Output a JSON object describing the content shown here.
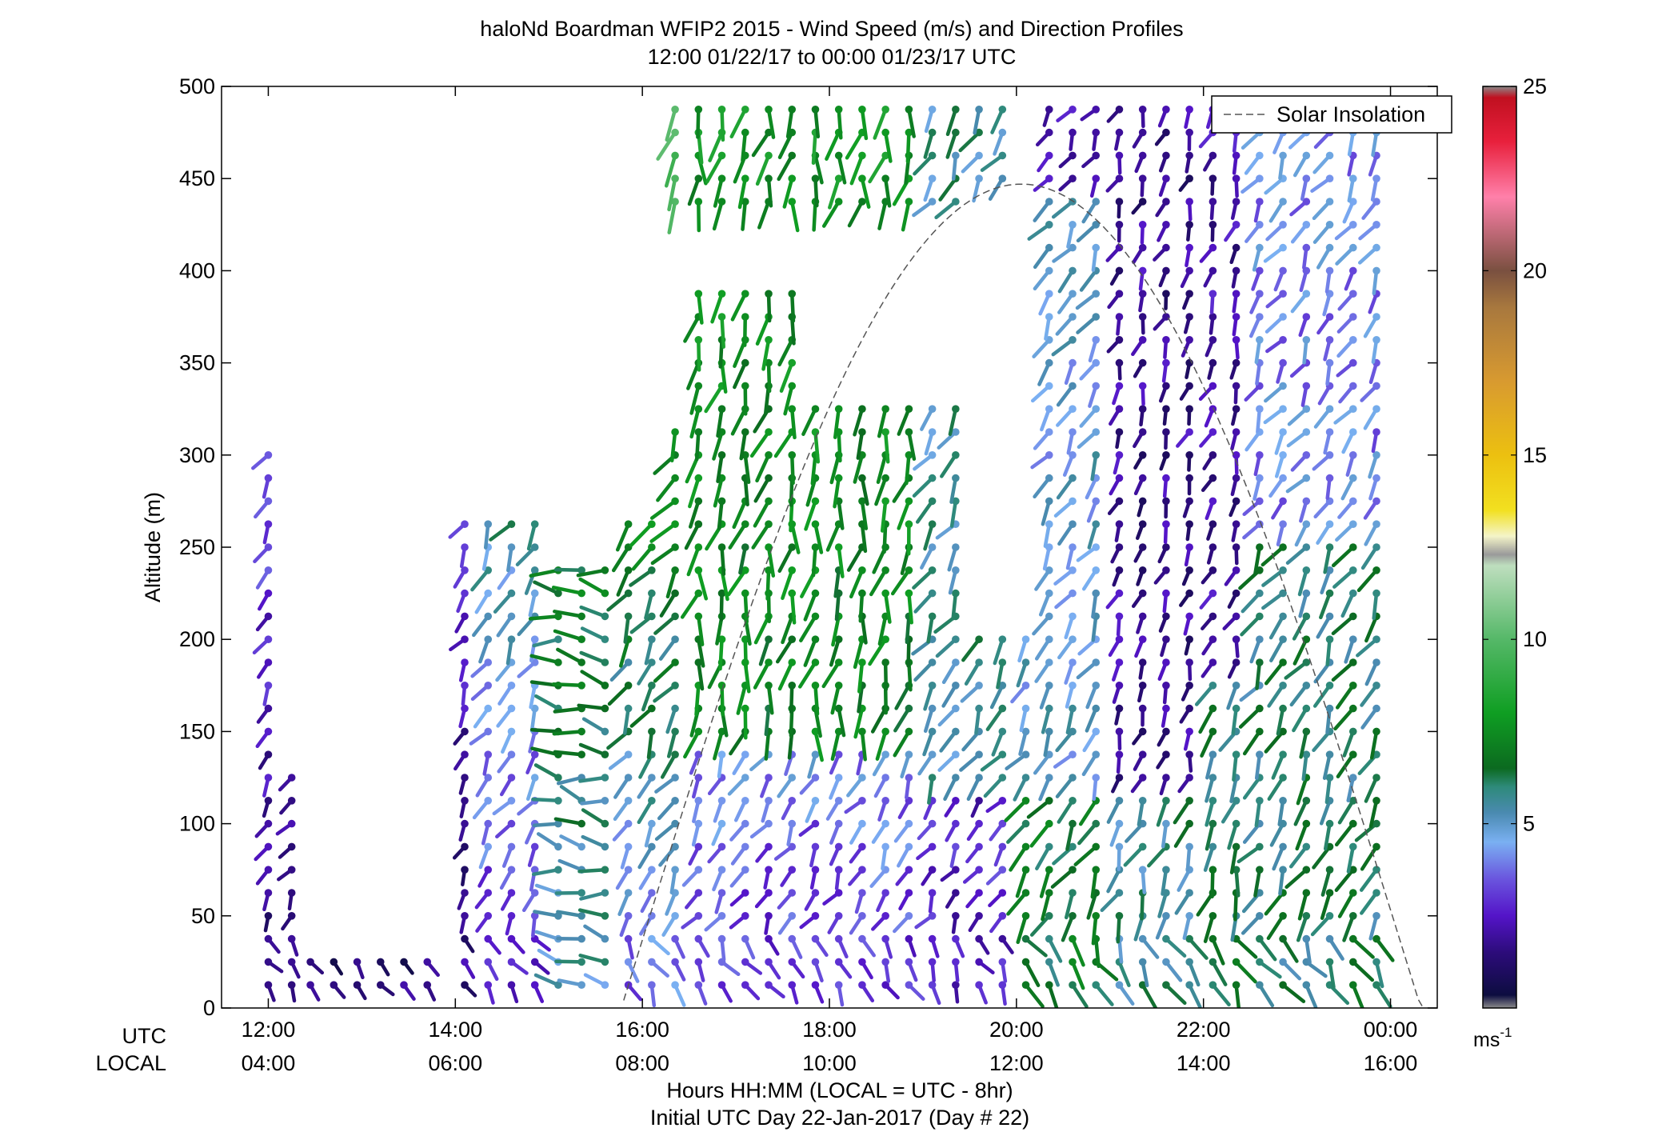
{
  "chart_data": {
    "type": "scatter",
    "title": "haloNd Boardman WFIP2 2015 - Wind Speed (m/s) and Direction Profiles",
    "subtitle": "12:00 01/22/17 to 00:00 01/23/17  UTC",
    "ylabel": "Altitude (m)",
    "xlabel": "Hours HH:MM  (LOCAL = UTC - 8hr)",
    "xlabel2": "Initial UTC Day 22-Jan-2017 (Day # 22)",
    "row_label_utc": "UTC",
    "row_label_local": "LOCAL",
    "xlim_hours_utc": [
      11.5,
      24.5
    ],
    "ylim": [
      0,
      500
    ],
    "y_ticks": [
      0,
      50,
      100,
      150,
      200,
      250,
      300,
      350,
      400,
      450,
      500
    ],
    "y_tick_labels": [
      "0",
      "50",
      "100",
      "150",
      "200",
      "250",
      "300",
      "350",
      "400",
      "450",
      "500"
    ],
    "x_ticks_utc_hours": [
      12,
      14,
      16,
      18,
      20,
      22,
      24
    ],
    "x_tick_labels_utc": [
      "12:00",
      "14:00",
      "16:00",
      "18:00",
      "20:00",
      "22:00",
      "00:00"
    ],
    "x_tick_labels_local": [
      "04:00",
      "06:00",
      "08:00",
      "10:00",
      "12:00",
      "14:00",
      "16:00"
    ],
    "legend": {
      "label": "Solar Insolation",
      "position": "top-right"
    },
    "solar_insolation": {
      "sunrise_utc_hour": 15.8,
      "sunset_utc_hour": 24.35,
      "peak_utc_hour": 20.05,
      "peak_altitude": 447
    },
    "colorbar": {
      "label": "ms",
      "label_superscript": "-1",
      "range": [
        0,
        25
      ],
      "ticks": [
        5,
        10,
        15,
        20,
        25
      ],
      "tick_labels": [
        "5",
        "10",
        "15",
        "20",
        "25"
      ],
      "stops": [
        {
          "v": 0.0,
          "c": "#8a8a8a"
        },
        {
          "v": 0.35,
          "c": "#0d0d40"
        },
        {
          "v": 1.5,
          "c": "#2c0c7a"
        },
        {
          "v": 2.5,
          "c": "#5414c8"
        },
        {
          "v": 3.5,
          "c": "#6a55de"
        },
        {
          "v": 4.5,
          "c": "#7ab0f2"
        },
        {
          "v": 5.3,
          "c": "#4a8ab0"
        },
        {
          "v": 6.0,
          "c": "#2e8a7a"
        },
        {
          "v": 6.5,
          "c": "#0c6a20"
        },
        {
          "v": 8.0,
          "c": "#0f9e22"
        },
        {
          "v": 10.0,
          "c": "#55b868"
        },
        {
          "v": 12.0,
          "c": "#bedebe"
        },
        {
          "v": 12.3,
          "c": "#9a9a9a"
        },
        {
          "v": 12.8,
          "c": "#f4f4c8"
        },
        {
          "v": 13.5,
          "c": "#f2e020"
        },
        {
          "v": 15.0,
          "c": "#ecc010"
        },
        {
          "v": 17.0,
          "c": "#d89a30"
        },
        {
          "v": 19.0,
          "c": "#a8783e"
        },
        {
          "v": 20.0,
          "c": "#7a5040"
        },
        {
          "v": 22.0,
          "c": "#ff80aa"
        },
        {
          "v": 23.5,
          "c": "#e8203c"
        },
        {
          "v": 24.7,
          "c": "#c01020"
        },
        {
          "v": 25.0,
          "c": "#8a8a8a"
        }
      ]
    },
    "regime": {
      "profiles_utc_hours": [
        12.0,
        12.25,
        12.45,
        12.7,
        12.95,
        13.2,
        13.45,
        13.7,
        14.1,
        14.35,
        14.6,
        14.85,
        15.1,
        15.35,
        15.6,
        15.85,
        16.1,
        16.35,
        16.6,
        16.85,
        17.1,
        17.35,
        17.6,
        17.85,
        18.1,
        18.35,
        18.6,
        18.85,
        19.1,
        19.35,
        19.6,
        19.85,
        20.1,
        20.35,
        20.6,
        20.85,
        21.1,
        21.35,
        21.6,
        21.85,
        22.1,
        22.35,
        22.6,
        22.85,
        23.1,
        23.35,
        23.6,
        23.85
      ],
      "vertical_spacing_m": 12.5
    }
  }
}
